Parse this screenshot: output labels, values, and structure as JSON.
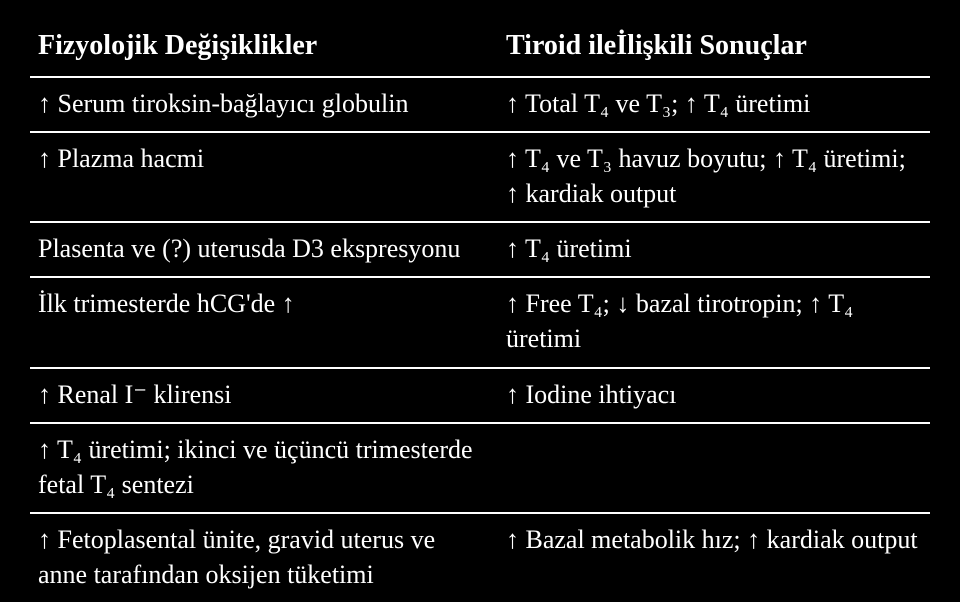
{
  "table": {
    "header_left": "Fizyolojik Değişiklikler",
    "header_right": "Tiroid ileİlişkili Sonuçlar",
    "rows": [
      {
        "left": "↑ Serum tiroksin-bağlayıcı globulin",
        "right": "↑ Total T₄ ve T₃; ↑ T₄ üretimi"
      },
      {
        "left": "↑ Plazma hacmi",
        "right": "↑ T₄ ve T₃ havuz boyutu; ↑ T₄ üretimi; ↑ kardiak output"
      },
      {
        "left": "Plasenta ve (?) uterusda D3 ekspresyonu",
        "right": "↑ T₄ üretimi"
      },
      {
        "left": "İlk trimesterde hCG'de ↑",
        "right": "↑ Free T₄; ↓ bazal tirotropin; ↑ T₄ üretimi"
      },
      {
        "left": "↑ Renal I⁻ klirensi",
        "right": "↑ Iodine ihtiyacı"
      },
      {
        "left": "↑ T₄ üretimi; ikinci ve üçüncü trimesterde fetal T₄ sentezi",
        "right": ""
      },
      {
        "left": "↑ Fetoplasental ünite, gravid uterus ve anne tarafından oksijen tüketimi",
        "right": "↑ Bazal metabolik hız; ↑ kardiak output"
      }
    ]
  },
  "colors": {
    "background": "#000000",
    "text": "#ffffff",
    "border": "#ffffff"
  }
}
